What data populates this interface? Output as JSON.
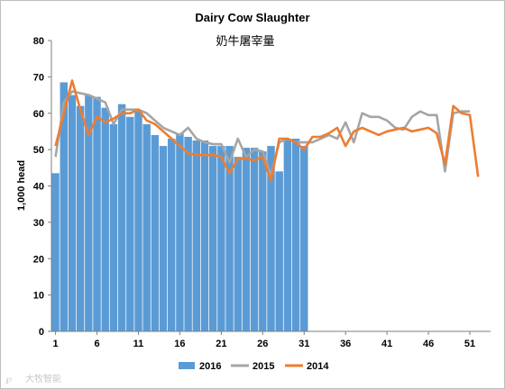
{
  "chart_data": {
    "type": "bar",
    "title": "Dairy Cow Slaughter",
    "subtitle": "奶牛屠宰量",
    "ylabel": "1,000 head",
    "xlabel": "",
    "ylim": [
      0,
      80
    ],
    "yticks": [
      "0",
      "10",
      "20",
      "30",
      "40",
      "50",
      "60",
      "70",
      "80"
    ],
    "xticks": [
      "1",
      "6",
      "11",
      "16",
      "21",
      "26",
      "31",
      "36",
      "41",
      "46",
      "51"
    ],
    "xrange": [
      1,
      53
    ],
    "grid": false,
    "legend_position": "bottom",
    "series": [
      {
        "name": "2016",
        "kind": "bar",
        "color": "#5b9bd5",
        "x": [
          1,
          2,
          3,
          4,
          5,
          6,
          7,
          8,
          9,
          10,
          11,
          12,
          13,
          14,
          15,
          16,
          17,
          18,
          19,
          20,
          21,
          22,
          23,
          24,
          25,
          26,
          27,
          28,
          29,
          30,
          31
        ],
        "values": [
          43.5,
          68.5,
          65,
          62,
          65,
          64.5,
          61.5,
          57,
          62.5,
          59,
          60.5,
          57,
          54,
          51,
          53,
          54.5,
          53.5,
          52.5,
          52.5,
          51,
          51,
          51,
          48,
          50.5,
          50.5,
          49.5,
          51,
          44,
          53,
          53,
          51
        ]
      },
      {
        "name": "2015",
        "kind": "line",
        "color": "#a5a5a5",
        "x": [
          1,
          2,
          3,
          4,
          5,
          6,
          7,
          8,
          9,
          10,
          11,
          12,
          13,
          14,
          15,
          16,
          17,
          18,
          19,
          20,
          21,
          22,
          23,
          24,
          25,
          26,
          27,
          28,
          29,
          30,
          31,
          32,
          33,
          34,
          35,
          36,
          37,
          38,
          39,
          40,
          41,
          42,
          43,
          44,
          45,
          46,
          47,
          48,
          49,
          50,
          51
        ],
        "values": [
          48,
          63,
          66,
          65.5,
          65,
          64,
          63,
          57,
          61,
          61,
          61,
          60,
          58,
          56,
          55,
          54,
          56,
          53,
          52,
          51.5,
          51.5,
          46.5,
          53,
          48,
          50,
          49.5,
          43,
          52,
          53,
          52,
          52,
          52,
          53,
          54,
          53,
          57.5,
          52,
          60,
          59,
          59,
          58,
          56,
          55.5,
          59,
          60.5,
          59.5,
          59.5,
          44,
          60,
          60.5,
          60.5
        ]
      },
      {
        "name": "2014",
        "kind": "line",
        "color": "#ed7d31",
        "x": [
          1,
          2,
          3,
          4,
          5,
          6,
          7,
          8,
          9,
          10,
          11,
          12,
          13,
          14,
          15,
          16,
          17,
          18,
          19,
          20,
          21,
          22,
          23,
          24,
          25,
          26,
          27,
          28,
          29,
          30,
          31,
          32,
          33,
          34,
          35,
          36,
          37,
          38,
          39,
          40,
          41,
          42,
          43,
          44,
          45,
          46,
          47,
          48,
          49,
          50,
          51,
          52
        ],
        "values": [
          51,
          60,
          69,
          61,
          54,
          59,
          57.5,
          58.5,
          60,
          60,
          61,
          58,
          57,
          55,
          53,
          51,
          49,
          48.5,
          48.5,
          48.5,
          48,
          43.5,
          47.5,
          47.5,
          47,
          48,
          41.5,
          53,
          53,
          52,
          50,
          53.5,
          53.5,
          54.5,
          56,
          51,
          55,
          56,
          55,
          54,
          55,
          55.5,
          56,
          55,
          55.5,
          56,
          54.5,
          46,
          62,
          60,
          59.5,
          42.5
        ]
      }
    ]
  },
  "watermark": "大牧智能"
}
